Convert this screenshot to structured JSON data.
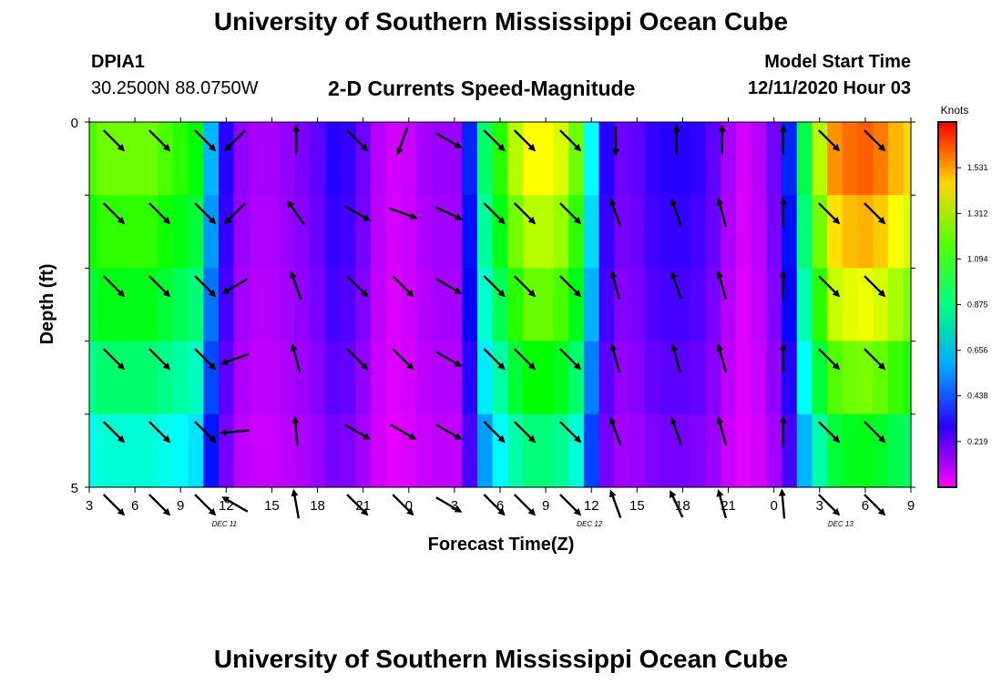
{
  "header": {
    "title": "University of Southern Mississippi Ocean Cube",
    "station_id": "DPIA1",
    "coordinates": "30.2500N 88.0750W",
    "plot_title": "2-D Currents Speed-Magnitude",
    "model_start_label": "Model Start Time",
    "model_start_value": "12/11/2020 Hour 03"
  },
  "footer": {
    "title": "University of Southern Mississippi Ocean Cube"
  },
  "chart_data": {
    "type": "heatmap",
    "title": "2-D Currents Speed-Magnitude",
    "xlabel": "Forecast Time(Z)",
    "ylabel": "Depth (ft)",
    "x_tick_labels": [
      "3",
      "6",
      "9",
      "12",
      "15",
      "18",
      "21",
      "0",
      "3",
      "6",
      "9",
      "12",
      "15",
      "18",
      "21",
      "0",
      "3",
      "6",
      "9"
    ],
    "x_hours_since_start": [
      0,
      3,
      6,
      9,
      12,
      15,
      18,
      21,
      24,
      27,
      30,
      33,
      36,
      39,
      42,
      45,
      48,
      51,
      54
    ],
    "x_range_hours": [
      0,
      54
    ],
    "date_labels": [
      {
        "label": "DEC 11",
        "hour": 9
      },
      {
        "label": "DEC 12",
        "hour": 33
      },
      {
        "label": "DEC 13",
        "hour": 49.5
      }
    ],
    "y_tick_labels": [
      "0",
      "5"
    ],
    "y_range": [
      0,
      5
    ],
    "depth_layers": 5,
    "colorbar": {
      "unit": "Knots",
      "min": 0,
      "max": 1.75,
      "ticks": [
        "1.531",
        "1.312",
        "1.094",
        "0.875",
        "0.656",
        "0.438",
        "0.219"
      ],
      "tick_values": [
        1.531,
        1.312,
        1.094,
        0.875,
        0.656,
        0.438,
        0.219
      ]
    },
    "speed_time_hours": [
      0,
      1,
      2,
      3,
      4,
      5,
      6,
      7,
      8,
      9,
      10,
      11,
      12,
      13,
      14,
      15,
      16,
      17,
      18,
      19,
      20,
      21,
      22,
      23,
      24,
      25,
      26,
      27,
      28,
      29,
      30,
      31,
      32,
      33,
      34,
      35,
      36,
      37,
      38,
      39,
      40,
      41,
      42,
      43,
      44,
      45,
      46,
      47,
      48,
      49,
      50,
      51,
      52,
      53,
      54
    ],
    "speed_top_knots": [
      1.15,
      1.2,
      1.2,
      1.2,
      1.2,
      1.15,
      1.1,
      1.05,
      0.6,
      0.3,
      0.15,
      0.12,
      0.12,
      0.15,
      0.18,
      0.22,
      0.3,
      0.28,
      0.2,
      0.1,
      0.06,
      0.08,
      0.12,
      0.14,
      0.14,
      0.4,
      0.9,
      1.1,
      1.3,
      1.4,
      1.4,
      1.35,
      1.2,
      0.7,
      0.3,
      0.2,
      0.22,
      0.28,
      0.3,
      0.3,
      0.28,
      0.22,
      0.12,
      0.06,
      0.1,
      0.2,
      0.4,
      0.95,
      1.3,
      1.55,
      1.6,
      1.62,
      1.58,
      1.5,
      1.45
    ],
    "depth_factors": [
      1.0,
      0.93,
      0.85,
      0.75,
      0.63,
      0.5
    ],
    "vectors": [
      {
        "hour": 1,
        "angle_deg": [
          135,
          135,
          135,
          135,
          135,
          135
        ]
      },
      {
        "hour": 4,
        "angle_deg": [
          135,
          135,
          135,
          135,
          135,
          135
        ]
      },
      {
        "hour": 7,
        "angle_deg": [
          135,
          135,
          135,
          135,
          135,
          135
        ]
      },
      {
        "hour": 9,
        "angle_deg": [
          -135,
          -135,
          -120,
          -110,
          -95,
          -60
        ]
      },
      {
        "hour": 13,
        "angle_deg": [
          0,
          -35,
          -20,
          -15,
          -5,
          -10
        ]
      },
      {
        "hour": 17,
        "angle_deg": [
          135,
          120,
          135,
          135,
          120,
          135
        ]
      },
      {
        "hour": 20,
        "angle_deg": [
          -160,
          110,
          135,
          135,
          120,
          135
        ]
      },
      {
        "hour": 23,
        "angle_deg": [
          120,
          115,
          120,
          120,
          120,
          120
        ]
      },
      {
        "hour": 26,
        "angle_deg": [
          135,
          135,
          135,
          135,
          135,
          135
        ]
      },
      {
        "hour": 28,
        "angle_deg": [
          135,
          135,
          135,
          135,
          135,
          135
        ]
      },
      {
        "hour": 31,
        "angle_deg": [
          135,
          135,
          135,
          135,
          135,
          135
        ]
      },
      {
        "hour": 34,
        "angle_deg": [
          180,
          -20,
          -15,
          -15,
          -20,
          -20
        ]
      },
      {
        "hour": 38,
        "angle_deg": [
          0,
          -20,
          -20,
          -15,
          -20,
          -25
        ]
      },
      {
        "hour": 41,
        "angle_deg": [
          0,
          -15,
          -15,
          -15,
          -15,
          -15
        ]
      },
      {
        "hour": 45,
        "angle_deg": [
          0,
          0,
          0,
          0,
          0,
          -5
        ]
      },
      {
        "hour": 48,
        "angle_deg": [
          135,
          135,
          135,
          135,
          135,
          135
        ]
      },
      {
        "hour": 51,
        "angle_deg": [
          135,
          135,
          135,
          135,
          135,
          135
        ]
      }
    ]
  }
}
